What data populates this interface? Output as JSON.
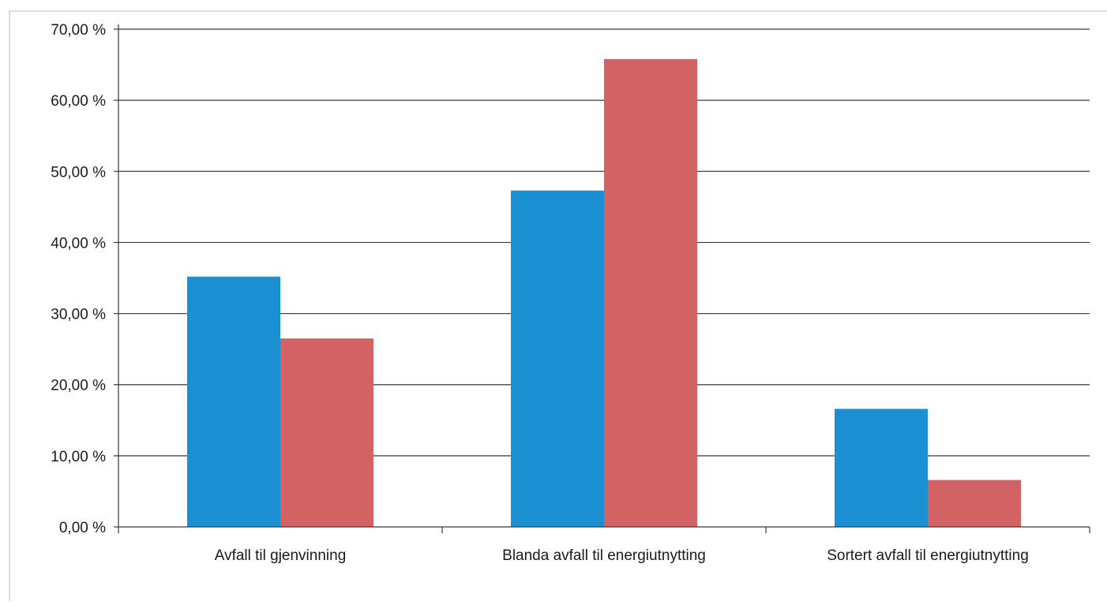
{
  "chart_data": {
    "type": "bar",
    "title": "",
    "xlabel": "",
    "ylabel": "",
    "categories": [
      "Avfall til gjenvinning",
      "Blanda avfall til energiutnytting",
      "Sortert avfall til energiutnytting"
    ],
    "series": [
      {
        "color": "#1a8fd2",
        "values": [
          35.2,
          47.3,
          16.6
        ]
      },
      {
        "color": "#d26264",
        "values": [
          26.5,
          65.8,
          6.6
        ]
      }
    ],
    "ylim": [
      0,
      70
    ],
    "yticks": [
      "0,00 %",
      "10,00 %",
      "20,00 %",
      "30,00 %",
      "40,00 %",
      "50,00 %",
      "60,00 %",
      "70,00 %"
    ],
    "grid": true,
    "legend": "none"
  }
}
